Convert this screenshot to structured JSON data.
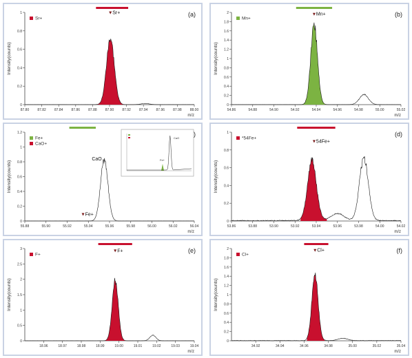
{
  "colors": {
    "red": "#c8102e",
    "green": "#7cb342",
    "frame": "#c9d2e4",
    "line": "#1a1a1a"
  },
  "chart_data": [
    {
      "type": "line",
      "panel_label": "(a)",
      "legend": "Sr+",
      "legend_color": "#c8102e",
      "ylabel": "Intensity(counts)",
      "xlabel": "m/z",
      "xlim": [
        87.8,
        88.0
      ],
      "ylim": [
        0,
        1.0
      ],
      "xticks": [
        "87.80",
        "87.82",
        "87.84",
        "87.86",
        "87.88",
        "87.90",
        "87.92",
        "87.94",
        "87.96",
        "87.98",
        "88.00"
      ],
      "yticks": [
        "0",
        "0.2",
        "0.4",
        "0.6",
        "0.8",
        "1"
      ],
      "marker": {
        "label": "Sr+",
        "x": 87.901,
        "y": 0.98
      },
      "window": [
        87.884,
        87.922
      ],
      "filled_peaks": [
        {
          "center": 87.901,
          "height": 0.72,
          "sigma": 0.0046,
          "color": "#c8102e"
        }
      ],
      "line_peaks": [
        {
          "center": 87.942,
          "height": 0.012,
          "sigma": 0.005
        }
      ],
      "fill_range": [
        87.884,
        87.93
      ]
    },
    {
      "type": "line",
      "panel_label": "(b)",
      "legend": "Mn+",
      "legend_color": "#7cb342",
      "ylabel": "Intensity(counts)",
      "xlabel": "m/z",
      "xlim": [
        54.86,
        55.02
      ],
      "ylim": [
        0,
        2.0
      ],
      "xticks": [
        "54.86",
        "54.88",
        "54.90",
        "54.92",
        "54.94",
        "54.96",
        "54.98",
        "55.00",
        "55.02"
      ],
      "yticks": [
        "0",
        "0.2",
        "0.4",
        "0.6",
        "0.8",
        "1",
        "1.2",
        "1.4",
        "1.6",
        "1.8",
        "2"
      ],
      "marker": {
        "label": "Mn+",
        "x": 54.938,
        "y": 1.93
      },
      "window": [
        54.921,
        54.955
      ],
      "filled_peaks": [
        {
          "center": 54.938,
          "height": 1.75,
          "sigma": 0.0032,
          "color": "#7cb342"
        }
      ],
      "line_peaks": [
        {
          "center": 54.985,
          "height": 0.22,
          "sigma": 0.0042
        }
      ],
      "fill_range": [
        54.925,
        54.95
      ]
    },
    {
      "type": "line",
      "panel_label": "(c)",
      "legend_items": [
        {
          "label": "Fe+",
          "color": "#7cb342"
        },
        {
          "label": "CaO+",
          "color": "#c8102e"
        }
      ],
      "ylabel": "Intensity(counts)",
      "xlabel": "m/z",
      "xlim": [
        55.88,
        56.04
      ],
      "ylim": [
        0,
        1.2
      ],
      "xticks": [
        "55.88",
        "55.90",
        "55.92",
        "55.94",
        "55.96",
        "55.98",
        "56.00",
        "56.02",
        "56.04"
      ],
      "yticks": [
        "0",
        "0.2",
        "0.4",
        "0.6",
        "0.8",
        "1",
        "1.2"
      ],
      "marker": {
        "label": "Fe+",
        "x": 55.935,
        "y": 0.07
      },
      "peak_label": {
        "text": "CaO",
        "x": 55.948,
        "y": 0.82
      },
      "window": [
        55.922,
        55.947
      ],
      "filled_peaks": [],
      "line_peaks": [
        {
          "center": 55.955,
          "height": 0.82,
          "sigma": 0.0035
        }
      ],
      "inset": {
        "peak_labels": [
          "Fe+",
          "CaO"
        ]
      }
    },
    {
      "type": "line",
      "panel_label": "(d)",
      "legend": "*54Fe+",
      "legend_color": "#c8102e",
      "ylabel": "Intensity(counts)",
      "xlabel": "m/z",
      "xlim": [
        53.86,
        54.02
      ],
      "ylim": [
        0,
        1.0
      ],
      "xticks": [
        "53.86",
        "53.88",
        "53.90",
        "53.92",
        "53.94",
        "53.96",
        "53.98",
        "54.00",
        "54.02"
      ],
      "yticks": [
        "0",
        "0.2",
        "0.4",
        "0.6",
        "0.8",
        "1"
      ],
      "marker": {
        "label": "54Fe+",
        "x": 53.938,
        "y": 0.88
      },
      "window": [
        53.922,
        53.958
      ],
      "filled_peaks": [
        {
          "center": 53.936,
          "height": 0.68,
          "sigma": 0.0042,
          "color": "#c8102e"
        }
      ],
      "line_peaks": [
        {
          "center": 53.985,
          "height": 0.7,
          "sigma": 0.0042
        },
        {
          "center": 53.96,
          "height": 0.08,
          "sigma": 0.006
        }
      ],
      "noise": 0.035,
      "fill_range": [
        53.925,
        53.95
      ]
    },
    {
      "type": "line",
      "panel_label": "(e)",
      "legend": "F+",
      "legend_color": "#c8102e",
      "ylabel": "Intensity(counts)",
      "xlabel": "m/z",
      "xlim": [
        18.95,
        19.04
      ],
      "ylim": [
        0,
        3.0
      ],
      "xticks": [
        "18.96",
        "18.97",
        "18.98",
        "18.99",
        "19.00",
        "19.01",
        "19.02",
        "19.03",
        "19.04"
      ],
      "yticks": [
        "0",
        "0.5",
        "1",
        "1.5",
        "2",
        "2.5",
        "3"
      ],
      "marker": {
        "label": "F+",
        "x": 18.998,
        "y": 2.88
      },
      "window": [
        18.989,
        19.007
      ],
      "filled_peaks": [
        {
          "center": 18.998,
          "height": 1.98,
          "sigma": 0.0016,
          "color": "#c8102e"
        }
      ],
      "line_peaks": [
        {
          "center": 19.018,
          "height": 0.18,
          "sigma": 0.0016
        }
      ],
      "fill_range": [
        18.992,
        19.005
      ]
    },
    {
      "type": "line",
      "panel_label": "(f)",
      "legend": "Cl+",
      "legend_color": "#c8102e",
      "ylabel": "Intensity(counts)",
      "xlabel": "m/z",
      "xlim": [
        34.9,
        35.04
      ],
      "ylim": [
        0,
        2.0
      ],
      "xticks": [
        "34.92",
        "34.94",
        "34.96",
        "34.98",
        "35.00",
        "35.02",
        "35.04"
      ],
      "yticks": [
        "0",
        "0.2",
        "0.4",
        "0.6",
        "0.8",
        "1",
        "1.2",
        "1.4",
        "1.6",
        "1.8",
        "2"
      ],
      "marker": {
        "label": "Cl+",
        "x": 34.969,
        "y": 1.93
      },
      "window": [
        34.96,
        34.98
      ],
      "filled_peaks": [
        {
          "center": 34.969,
          "height": 1.42,
          "sigma": 0.0026,
          "color": "#c8102e"
        }
      ],
      "line_peaks": [
        {
          "center": 34.992,
          "height": 0.05,
          "sigma": 0.004
        }
      ],
      "noise": 0.015,
      "fill_range": [
        34.962,
        34.977
      ]
    }
  ]
}
